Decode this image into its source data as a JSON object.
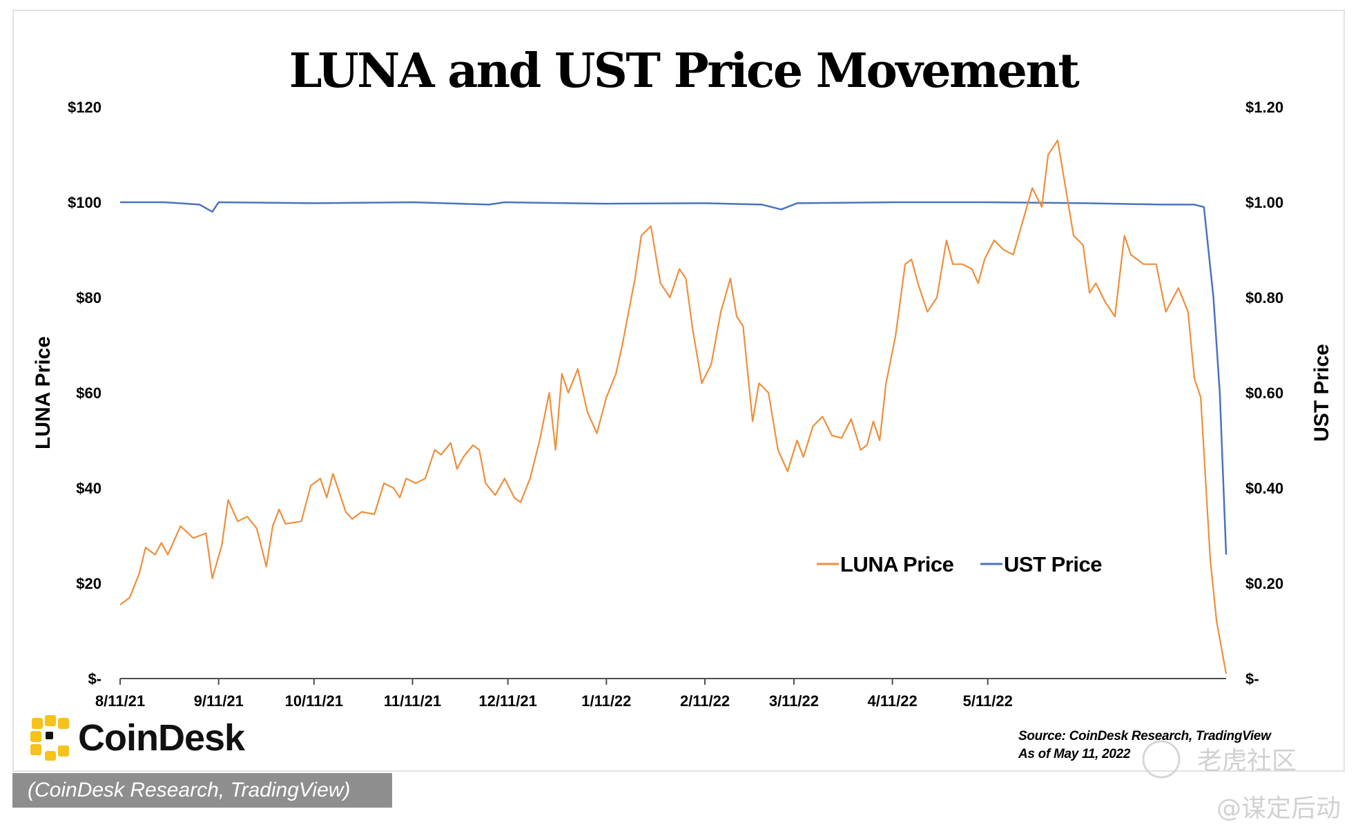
{
  "chart_data": {
    "type": "line",
    "title": "LUNA and UST Price Movement",
    "left_axis": {
      "label": "LUNA Price",
      "ticks": [
        "$120",
        "$100",
        "$80",
        "$60",
        "$40",
        "$20",
        "$-"
      ],
      "range": [
        0,
        120
      ]
    },
    "right_axis": {
      "label": "UST Price",
      "ticks": [
        "$1.20",
        "$1.00",
        "$0.80",
        "$0.60",
        "$0.40",
        "$0.20",
        "$-"
      ],
      "range": [
        0,
        1.2
      ]
    },
    "x_ticks": [
      "8/11/21",
      "9/11/21",
      "10/11/21",
      "11/11/21",
      "12/11/21",
      "1/11/22",
      "2/11/22",
      "3/11/22",
      "4/11/22",
      "5/11/22"
    ],
    "legend_position": "center-right",
    "grid": false,
    "series": [
      {
        "name": "LUNA Price",
        "axis": "left",
        "color": "#ef8e3a",
        "points": [
          [
            "2021-08-11",
            15.5
          ],
          [
            "2021-08-14",
            17
          ],
          [
            "2021-08-17",
            22
          ],
          [
            "2021-08-19",
            27.5
          ],
          [
            "2021-08-22",
            26
          ],
          [
            "2021-08-24",
            28.5
          ],
          [
            "2021-08-26",
            26
          ],
          [
            "2021-08-30",
            32
          ],
          [
            "2021-09-03",
            29.5
          ],
          [
            "2021-09-07",
            30.5
          ],
          [
            "2021-09-09",
            21
          ],
          [
            "2021-09-12",
            28
          ],
          [
            "2021-09-14",
            37.5
          ],
          [
            "2021-09-17",
            33
          ],
          [
            "2021-09-20",
            34
          ],
          [
            "2021-09-23",
            31.5
          ],
          [
            "2021-09-26",
            23.5
          ],
          [
            "2021-09-28",
            32
          ],
          [
            "2021-09-30",
            35.5
          ],
          [
            "2021-10-02",
            32.5
          ],
          [
            "2021-10-07",
            33
          ],
          [
            "2021-10-10",
            40.5
          ],
          [
            "2021-10-13",
            42
          ],
          [
            "2021-10-15",
            38
          ],
          [
            "2021-10-17",
            43
          ],
          [
            "2021-10-21",
            35
          ],
          [
            "2021-10-23",
            33.5
          ],
          [
            "2021-10-26",
            35
          ],
          [
            "2021-10-30",
            34.5
          ],
          [
            "2021-11-02",
            41
          ],
          [
            "2021-11-05",
            40
          ],
          [
            "2021-11-07",
            38
          ],
          [
            "2021-11-09",
            42
          ],
          [
            "2021-11-12",
            41
          ],
          [
            "2021-11-15",
            42
          ],
          [
            "2021-11-18",
            48
          ],
          [
            "2021-11-20",
            47
          ],
          [
            "2021-11-23",
            49.5
          ],
          [
            "2021-11-25",
            44
          ],
          [
            "2021-11-27",
            46.5
          ],
          [
            "2021-11-30",
            49
          ],
          [
            "2021-12-02",
            48
          ],
          [
            "2021-12-04",
            41
          ],
          [
            "2021-12-07",
            38.5
          ],
          [
            "2021-12-10",
            42
          ],
          [
            "2021-12-13",
            38
          ],
          [
            "2021-12-15",
            37
          ],
          [
            "2021-12-18",
            42
          ],
          [
            "2021-12-21",
            50
          ],
          [
            "2021-12-24",
            60
          ],
          [
            "2021-12-26",
            48
          ],
          [
            "2021-12-28",
            64
          ],
          [
            "2021-12-30",
            60
          ],
          [
            "2022-01-02",
            65
          ],
          [
            "2022-01-05",
            56
          ],
          [
            "2022-01-08",
            51.5
          ],
          [
            "2022-01-11",
            59
          ],
          [
            "2022-01-14",
            64
          ],
          [
            "2022-01-16",
            70
          ],
          [
            "2022-01-20",
            84
          ],
          [
            "2022-01-22",
            93
          ],
          [
            "2022-01-25",
            95
          ],
          [
            "2022-01-28",
            83
          ],
          [
            "2022-01-31",
            80
          ],
          [
            "2022-02-03",
            86
          ],
          [
            "2022-02-05",
            84
          ],
          [
            "2022-02-07",
            74
          ],
          [
            "2022-02-10",
            62
          ],
          [
            "2022-02-13",
            66
          ],
          [
            "2022-02-16",
            77
          ],
          [
            "2022-02-19",
            84
          ],
          [
            "2022-02-21",
            76
          ],
          [
            "2022-02-23",
            74
          ],
          [
            "2022-02-26",
            54
          ],
          [
            "2022-02-28",
            62
          ],
          [
            "2022-03-03",
            60
          ],
          [
            "2022-03-06",
            48
          ],
          [
            "2022-03-09",
            43.5
          ],
          [
            "2022-03-12",
            50
          ],
          [
            "2022-03-14",
            46.5
          ],
          [
            "2022-03-17",
            53
          ],
          [
            "2022-03-20",
            55
          ],
          [
            "2022-03-23",
            51
          ],
          [
            "2022-03-26",
            50.5
          ],
          [
            "2022-03-29",
            54.5
          ],
          [
            "2022-04-01",
            48
          ],
          [
            "2022-04-03",
            49
          ],
          [
            "2022-04-05",
            54
          ],
          [
            "2022-04-07",
            50
          ],
          [
            "2022-04-09",
            62
          ],
          [
            "2022-04-12",
            72
          ],
          [
            "2022-04-15",
            87
          ],
          [
            "2022-04-17",
            88
          ],
          [
            "2022-04-19",
            83
          ],
          [
            "2022-04-22",
            77
          ],
          [
            "2022-04-25",
            80
          ],
          [
            "2022-04-28",
            92
          ],
          [
            "2022-04-30",
            87
          ],
          [
            "2022-05-03",
            87
          ],
          [
            "2022-05-06",
            86
          ],
          [
            "2022-05-08",
            83
          ],
          [
            "2022-05-10",
            88
          ],
          [
            "2022-05-13",
            92
          ],
          [
            "2022-05-16",
            90
          ],
          [
            "2022-05-19",
            89
          ],
          [
            "2022-05-22",
            96
          ],
          [
            "2022-05-25",
            103
          ],
          [
            "2022-05-28",
            99
          ],
          [
            "2022-05-30",
            110
          ],
          [
            "2022-06-02",
            113
          ],
          [
            "2022-06-04",
            105
          ],
          [
            "2022-06-07",
            93
          ],
          [
            "2022-06-10",
            91
          ],
          [
            "2022-06-12",
            81
          ],
          [
            "2022-06-14",
            83
          ],
          [
            "2022-06-17",
            79
          ],
          [
            "2022-06-20",
            76
          ],
          [
            "2022-06-23",
            93
          ],
          [
            "2022-06-25",
            89
          ],
          [
            "2022-06-29",
            87
          ],
          [
            "2022-07-03",
            87
          ],
          [
            "2022-07-06",
            77
          ],
          [
            "2022-07-10",
            82
          ],
          [
            "2022-07-13",
            77
          ],
          [
            "2022-07-15",
            63
          ],
          [
            "2022-07-17",
            59
          ],
          [
            "2022-07-20",
            25
          ],
          [
            "2022-07-22",
            12
          ],
          [
            "2022-07-25",
            1
          ]
        ]
      },
      {
        "name": "UST Price",
        "axis": "right",
        "color": "#4a72c0",
        "points": [
          [
            "2021-08-11",
            1.0
          ],
          [
            "2021-08-25",
            1.0
          ],
          [
            "2021-09-05",
            0.995
          ],
          [
            "2021-09-09",
            0.98
          ],
          [
            "2021-09-11",
            1.0
          ],
          [
            "2021-10-11",
            0.998
          ],
          [
            "2021-11-11",
            1.0
          ],
          [
            "2021-12-05",
            0.995
          ],
          [
            "2021-12-10",
            1.0
          ],
          [
            "2022-01-11",
            0.997
          ],
          [
            "2022-02-11",
            0.998
          ],
          [
            "2022-03-01",
            0.995
          ],
          [
            "2022-03-07",
            0.985
          ],
          [
            "2022-03-12",
            0.998
          ],
          [
            "2022-04-11",
            1.0
          ],
          [
            "2022-05-11",
            1.0
          ],
          [
            "2022-06-11",
            0.998
          ],
          [
            "2022-07-05",
            0.995
          ],
          [
            "2022-07-15",
            0.995
          ],
          [
            "2022-07-18",
            0.99
          ],
          [
            "2022-07-21",
            0.8
          ],
          [
            "2022-07-23",
            0.6
          ],
          [
            "2022-07-25",
            0.26
          ]
        ]
      }
    ]
  },
  "logo": {
    "name": "CoinDesk"
  },
  "source": {
    "line1": "Source: CoinDesk Research, TradingView",
    "line2": "As of May 11, 2022"
  },
  "caption": "(CoinDesk Research, TradingView)",
  "watermark": {
    "text1": "老虎社区",
    "text2": "@谋定后动"
  },
  "colors": {
    "luna": "#ef8e3a",
    "ust": "#4a72c0",
    "logo_accent": "#f6c21b",
    "caption_bg": "#8e8e8e"
  }
}
